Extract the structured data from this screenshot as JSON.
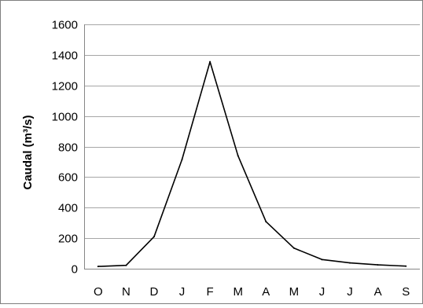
{
  "chart_data": {
    "type": "line",
    "categories": [
      "O",
      "N",
      "D",
      "J",
      "F",
      "M",
      "A",
      "M",
      "J",
      "J",
      "A",
      "S"
    ],
    "series": [
      {
        "values": [
          15,
          22,
          210,
          715,
          1355,
          740,
          308,
          135,
          60,
          38,
          25,
          17
        ],
        "color": "#000000"
      }
    ],
    "title": "",
    "xlabel": "",
    "ylabel": "Caudal (m³/s)",
    "ylim": [
      0,
      1600
    ],
    "yticks": [
      0,
      200,
      400,
      600,
      800,
      1000,
      1200,
      1400,
      1600
    ],
    "grid": "horizontal",
    "legend": "none",
    "gridline_color": "#a6a6a6",
    "border_color": "#7f7f7f"
  }
}
